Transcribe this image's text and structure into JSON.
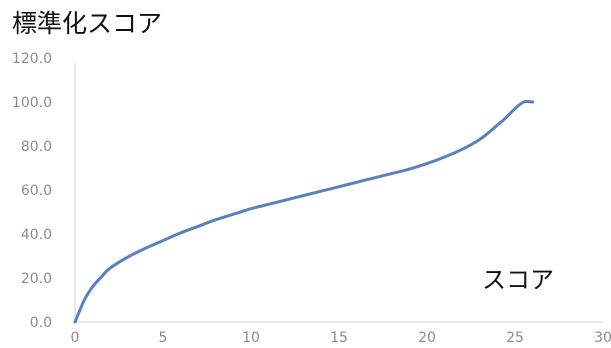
{
  "chart_data": {
    "type": "line",
    "title": "標準化スコア",
    "xlabel": "スコア",
    "ylabel": "",
    "xlim": [
      0,
      30
    ],
    "ylim": [
      0,
      120
    ],
    "x_ticks": [
      "0",
      "5",
      "10",
      "15",
      "20",
      "25",
      "30"
    ],
    "y_ticks": [
      "0.0",
      "20.0",
      "40.0",
      "60.0",
      "80.0",
      "100.0",
      "120.0"
    ],
    "grid": false,
    "legend": "none",
    "series": [
      {
        "color": "#5b7fbf",
        "x": [
          0,
          0.5,
          1,
          1.5,
          2,
          3,
          4,
          5,
          6,
          7,
          8,
          9,
          10,
          11,
          12,
          13,
          14,
          15,
          16,
          17,
          18,
          19,
          20,
          21,
          22,
          23,
          24,
          24.5,
          25,
          25.5,
          26
        ],
        "y": [
          0,
          9.5,
          16,
          20.5,
          24.5,
          29.5,
          33.5,
          37,
          40.5,
          43.5,
          46.5,
          49,
          51.5,
          53.5,
          55.5,
          57.5,
          59.5,
          61.5,
          63.5,
          65.5,
          67.5,
          69.5,
          72,
          75,
          78.5,
          83,
          89.5,
          93,
          97,
          100,
          100
        ]
      }
    ]
  }
}
